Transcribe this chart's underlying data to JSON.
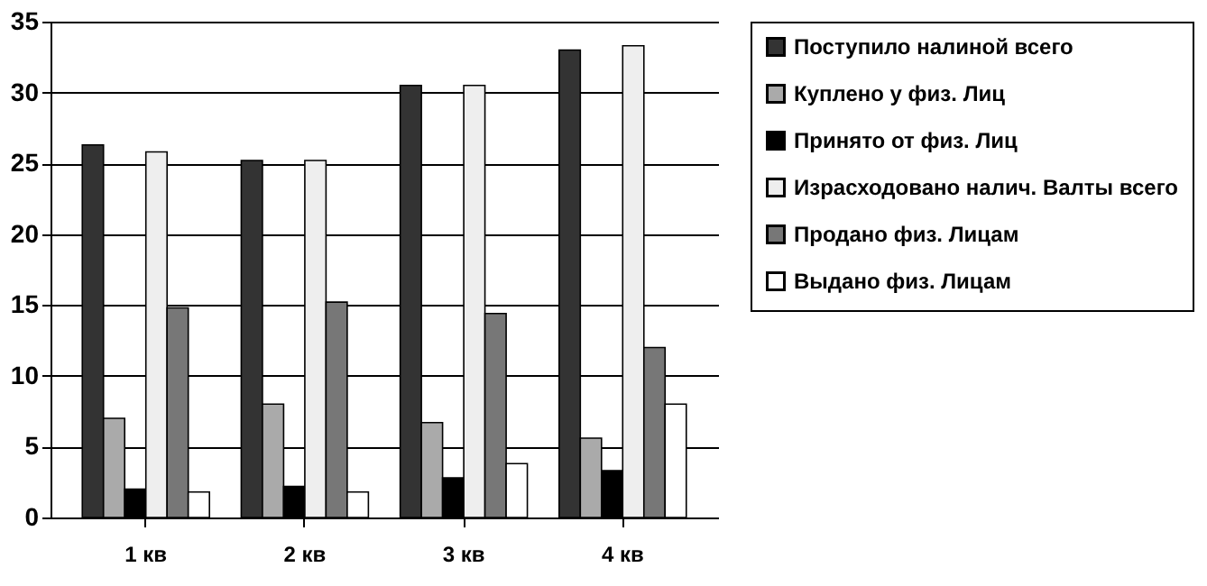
{
  "chart_data": {
    "type": "bar",
    "categories": [
      "1 кв",
      "2 кв",
      "3 кв",
      "4 кв"
    ],
    "series": [
      {
        "name": "Поступило налиной всего",
        "color": "#333333",
        "values": [
          26.3,
          25.2,
          30.5,
          33
        ]
      },
      {
        "name": "Куплено у физ. Лиц",
        "color": "#aaaaaa",
        "values": [
          7,
          8,
          6.7,
          5.6
        ]
      },
      {
        "name": "Принято от физ. Лиц",
        "color": "#000000",
        "values": [
          2,
          2.2,
          2.8,
          3.3
        ]
      },
      {
        "name": "Израсходовано налич. Валты всего",
        "color": "#eeeeee",
        "values": [
          25.8,
          25.2,
          30.5,
          33.3
        ]
      },
      {
        "name": "Продано физ. Лицам",
        "color": "#777777",
        "values": [
          14.8,
          15.2,
          14.4,
          12
        ]
      },
      {
        "name": "Выдано физ. Лицам",
        "color": "#ffffff",
        "values": [
          1.8,
          1.8,
          3.8,
          8
        ]
      }
    ],
    "ylim": [
      0,
      35
    ],
    "yticks": [
      0,
      5,
      10,
      15,
      20,
      25,
      30,
      35
    ],
    "grid": "y",
    "legend": "right"
  }
}
